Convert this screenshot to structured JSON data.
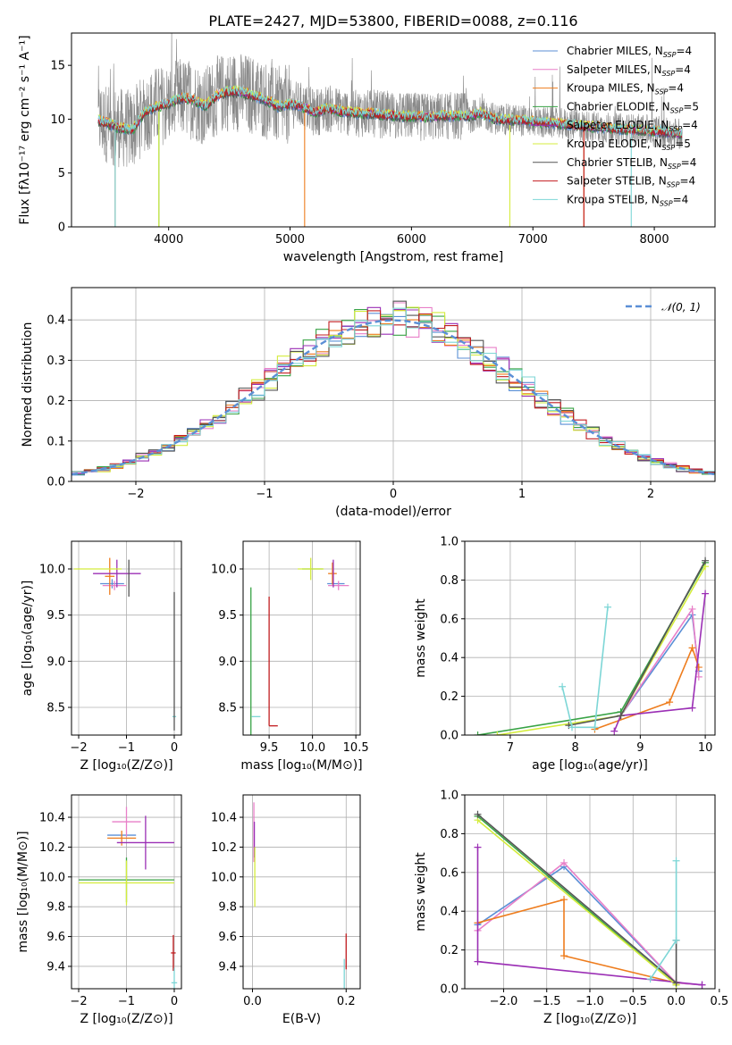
{
  "colors": [
    "#5b8fd6",
    "#e87fc8",
    "#ee7d1e",
    "#38a345",
    "#9b2fb5",
    "#d4ec3c",
    "#555555",
    "#c21d20",
    "#7dd6d6"
  ],
  "chart_data": [
    {
      "id": "spectrum",
      "type": "line",
      "title": "PLATE=2427, MJD=53800, FIBERID=0088, z=0.116",
      "xlabel": "wavelength [Angstrom, rest frame]",
      "ylabel": "Flux [fλ10⁻¹⁷ erg cm⁻² s⁻¹ A⁻¹]",
      "xlim": [
        3200,
        8500
      ],
      "ylim": [
        0,
        18
      ],
      "xticks": [
        "4000",
        "5000",
        "6000",
        "7000",
        "8000"
      ],
      "yticks": [
        "0",
        "5",
        "10",
        "15"
      ],
      "series": [
        {
          "name": "Chabrier MILES, N_SSP=4"
        },
        {
          "name": "Salpeter MILES, N_SSP=4"
        },
        {
          "name": "Kroupa MILES, N_SSP=4"
        },
        {
          "name": "Chabrier ELODIE, N_SSP=5"
        },
        {
          "name": "Salpeter ELODIE, N_SSP=4"
        },
        {
          "name": "Kroupa ELODIE, N_SSP=5"
        },
        {
          "name": "Chabrier STELIB, N_SSP=4"
        },
        {
          "name": "Salpeter STELIB, N_SSP=4"
        },
        {
          "name": "Kroupa STELIB, N_SSP=4"
        }
      ],
      "continuum": [
        [
          3420,
          9.9
        ],
        [
          3500,
          9.6
        ],
        [
          3600,
          9.2
        ],
        [
          3700,
          9.0
        ],
        [
          3800,
          10.6
        ],
        [
          3900,
          11.2
        ],
        [
          4000,
          11.4
        ],
        [
          4100,
          12.0
        ],
        [
          4200,
          11.8
        ],
        [
          4300,
          11.2
        ],
        [
          4400,
          12.2
        ],
        [
          4500,
          12.6
        ],
        [
          4600,
          12.5
        ],
        [
          4700,
          12.2
        ],
        [
          4800,
          11.8
        ],
        [
          4900,
          11.2
        ],
        [
          5000,
          11.4
        ],
        [
          5100,
          11.2
        ],
        [
          5200,
          10.6
        ],
        [
          5300,
          11.0
        ],
        [
          5400,
          10.8
        ],
        [
          5500,
          10.6
        ],
        [
          5700,
          10.5
        ],
        [
          5900,
          10.3
        ],
        [
          6100,
          10.2
        ],
        [
          6300,
          10.3
        ],
        [
          6500,
          10.3
        ],
        [
          6560,
          10.6
        ],
        [
          6700,
          10.0
        ],
        [
          6900,
          9.9
        ],
        [
          7100,
          9.7
        ],
        [
          7300,
          9.5
        ],
        [
          7500,
          9.3
        ],
        [
          7700,
          9.1
        ],
        [
          7900,
          9.0
        ],
        [
          8100,
          8.8
        ],
        [
          8230,
          8.6
        ]
      ]
    },
    {
      "id": "residuals",
      "type": "step",
      "xlabel": "(data-model)/error",
      "ylabel": "Normed distribution",
      "xlim": [
        -2.5,
        2.5
      ],
      "ylim": [
        0,
        0.48
      ],
      "xticks": [
        "−2",
        "−1",
        "0",
        "1",
        "2"
      ],
      "yticks": [
        "0.0",
        "0.1",
        "0.2",
        "0.3",
        "0.4"
      ],
      "legend": "𝒩(0, 1)",
      "legend_position": "top-right"
    },
    {
      "id": "z-age",
      "type": "errorbar",
      "xlabel": "Z [log₁₀(Z/Z⊙)]",
      "ylabel": "age  [log₁₀(age/yr)]",
      "xlim": [
        -2.15,
        0.15
      ],
      "ylim": [
        8.2,
        10.3
      ],
      "xticks": [
        "−2",
        "−1",
        "0"
      ],
      "yticks": [
        "8.5",
        "9.0",
        "9.5",
        "10.0"
      ],
      "points": [
        {
          "s": 0,
          "x": -1.3,
          "y": 9.84,
          "xe": 0.25,
          "ye": 0.05
        },
        {
          "s": 1,
          "x": -1.25,
          "y": 9.82,
          "xe": 0.25,
          "ye": 0.05
        },
        {
          "s": 2,
          "x": -1.35,
          "y": 9.92,
          "xe": 0.1,
          "ye": 0.2
        },
        {
          "s": 3,
          "x": -2.0,
          "y": 10.0,
          "xe": 0.0,
          "ye": 0.0
        },
        {
          "s": 4,
          "x": -1.2,
          "y": 9.95,
          "xe": 0.5,
          "ye": 0.15
        },
        {
          "s": 5,
          "x": -1.6,
          "y": 10.0,
          "xe": 0.5,
          "ye": 0.0
        },
        {
          "s": 6,
          "x": -0.95,
          "y": 9.9,
          "xe": 0.0,
          "ye": 0.2
        },
        {
          "s": 7,
          "x": 0.0,
          "y": 9.5,
          "xe": 0.0,
          "ye": 0.0
        },
        {
          "s": 8,
          "x": 0.0,
          "y": 8.4,
          "xe": 0.04,
          "ye": 0.0
        },
        {
          "s": 6,
          "x": 0.0,
          "y": 9.0,
          "xe": 0.0,
          "ye": 0.75
        }
      ]
    },
    {
      "id": "mass-age",
      "type": "errorbar",
      "xlabel": "mass [log₁₀(M/M⊙)]",
      "xlim": [
        9.2,
        10.55
      ],
      "ylim": [
        8.2,
        10.3
      ],
      "xticks": [
        "9.5",
        "10.0",
        "10.5"
      ],
      "yticks": [
        "8.5",
        "9.0",
        "9.5",
        "10.0"
      ],
      "points": [
        {
          "s": 0,
          "x": 10.27,
          "y": 9.84,
          "xe": 0.1,
          "ye": 0.0
        },
        {
          "s": 1,
          "x": 10.3,
          "y": 9.82,
          "xe": 0.12,
          "ye": 0.05
        },
        {
          "s": 2,
          "x": 10.23,
          "y": 9.95,
          "xe": 0.05,
          "ye": 0.12
        },
        {
          "s": 3,
          "x": 10.0,
          "y": 10.0,
          "xe": 0.12,
          "ye": 0.0
        },
        {
          "s": 4,
          "x": 10.24,
          "y": 9.95,
          "xe": 0.0,
          "ye": 0.15
        },
        {
          "s": 5,
          "x": 9.98,
          "y": 10.0,
          "xe": 0.15,
          "ye": 0.12
        },
        {
          "s": 3,
          "x": 9.29,
          "y": 9.0,
          "xe": 0.0,
          "ye": 0.8
        },
        {
          "s": 7,
          "x": 9.5,
          "y": 9.0,
          "xe": 0.0,
          "ye": 0.7
        },
        {
          "s": 7,
          "x": 9.55,
          "y": 8.3,
          "xe": 0.05,
          "ye": 0.0
        },
        {
          "s": 8,
          "x": 9.35,
          "y": 8.4,
          "xe": 0.05,
          "ye": 0.0
        }
      ]
    },
    {
      "id": "age-weight",
      "type": "line",
      "xlabel": "age  [log₁₀(age/yr)]",
      "ylabel": "mass weight",
      "xlim": [
        6.3,
        10.15
      ],
      "ylim": [
        0,
        1.0
      ],
      "xticks": [
        "7",
        "8",
        "9",
        "10"
      ],
      "yticks": [
        "0.0",
        "0.2",
        "0.4",
        "0.6",
        "0.8",
        "1.0"
      ],
      "series": [
        {
          "s": 0,
          "points": [
            [
              8.7,
              0.1
            ],
            [
              9.8,
              0.62
            ],
            [
              9.9,
              0.33
            ]
          ]
        },
        {
          "s": 1,
          "points": [
            [
              8.7,
              0.1
            ],
            [
              9.8,
              0.65
            ],
            [
              9.9,
              0.3
            ]
          ]
        },
        {
          "s": 2,
          "points": [
            [
              8.3,
              0.03
            ],
            [
              9.45,
              0.17
            ],
            [
              9.8,
              0.45
            ],
            [
              9.9,
              0.35
            ]
          ]
        },
        {
          "s": 3,
          "points": [
            [
              6.5,
              0.0
            ],
            [
              8.7,
              0.12
            ],
            [
              10.0,
              0.89
            ]
          ]
        },
        {
          "s": 4,
          "points": [
            [
              8.6,
              0.02
            ],
            [
              8.7,
              0.1
            ],
            [
              9.8,
              0.14
            ],
            [
              10.0,
              0.73
            ]
          ]
        },
        {
          "s": 5,
          "points": [
            [
              6.8,
              0.0
            ],
            [
              8.7,
              0.1
            ],
            [
              10.0,
              0.87
            ]
          ]
        },
        {
          "s": 6,
          "points": [
            [
              7.9,
              0.05
            ],
            [
              8.7,
              0.1
            ],
            [
              10.0,
              0.9
            ]
          ]
        },
        {
          "s": 8,
          "points": [
            [
              7.8,
              0.25
            ],
            [
              7.95,
              0.04
            ],
            [
              8.3,
              0.04
            ],
            [
              8.5,
              0.66
            ]
          ]
        }
      ]
    },
    {
      "id": "z-mass",
      "type": "errorbar",
      "xlabel": "Z [log₁₀(Z/Z⊙)]",
      "ylabel": "mass [log₁₀(M/M⊙)]",
      "xlim": [
        -2.15,
        0.15
      ],
      "ylim": [
        9.25,
        10.55
      ],
      "xticks": [
        "−2",
        "−1",
        "0"
      ],
      "yticks": [
        "9.4",
        "9.6",
        "9.8",
        "10.0",
        "10.2",
        "10.4"
      ],
      "points": [
        {
          "s": 0,
          "x": -1.1,
          "y": 10.28,
          "xe": 0.3,
          "ye": 0.0
        },
        {
          "s": 1,
          "x": -1.0,
          "y": 10.37,
          "xe": 0.3,
          "ye": 0.1
        },
        {
          "s": 2,
          "x": -1.1,
          "y": 10.26,
          "xe": 0.3,
          "ye": 0.05
        },
        {
          "s": 3,
          "x": -1.0,
          "y": 9.98,
          "xe": 1.0,
          "ye": 0.15
        },
        {
          "s": 4,
          "x": -0.6,
          "y": 10.23,
          "xe": 0.6,
          "ye": 0.18
        },
        {
          "s": 5,
          "x": -1.0,
          "y": 9.96,
          "xe": 1.0,
          "ye": 0.15
        },
        {
          "s": 7,
          "x": -0.02,
          "y": 9.49,
          "xe": 0.05,
          "ye": 0.12
        },
        {
          "s": 8,
          "x": 0.0,
          "y": 9.29,
          "xe": 0.06,
          "ye": 0.1
        }
      ]
    },
    {
      "id": "ebv-mass",
      "type": "errorbar",
      "xlabel": "E(B-V)",
      "xlim": [
        -0.02,
        0.23
      ],
      "ylim": [
        9.25,
        10.55
      ],
      "xticks": [
        "0.0",
        "0.2"
      ],
      "yticks": [
        "9.4",
        "9.6",
        "9.8",
        "10.0",
        "10.2",
        "10.4"
      ],
      "points": [
        {
          "s": 1,
          "x": 0.003,
          "y": 10.3,
          "xe": 0.0,
          "ye": 0.2
        },
        {
          "s": 4,
          "x": 0.004,
          "y": 10.25,
          "xe": 0.0,
          "ye": 0.12
        },
        {
          "s": 5,
          "x": 0.005,
          "y": 10.0,
          "xe": 0.0,
          "ye": 0.2
        },
        {
          "s": 7,
          "x": 0.2,
          "y": 9.5,
          "xe": 0.0,
          "ye": 0.12
        },
        {
          "s": 8,
          "x": 0.196,
          "y": 9.35,
          "xe": 0.0,
          "ye": 0.1
        }
      ]
    },
    {
      "id": "z-weight",
      "type": "line",
      "xlabel": "Z [log₁₀(Z/Z⊙)]",
      "ylabel": "mass weight",
      "xlim": [
        -2.45,
        0.45
      ],
      "ylim": [
        0,
        1.0
      ],
      "xticks": [
        "−2.0",
        "−1.5",
        "−1.0",
        "−0.5",
        "0.0",
        "0.5"
      ],
      "yticks": [
        "0.0",
        "0.2",
        "0.4",
        "0.6",
        "0.8",
        "1.0"
      ],
      "series": [
        {
          "s": 0,
          "points": [
            [
              -2.3,
              0.33
            ],
            [
              -1.3,
              0.63
            ],
            [
              0.0,
              0.03
            ],
            [
              0.3,
              0.02
            ]
          ]
        },
        {
          "s": 1,
          "points": [
            [
              -2.3,
              0.3
            ],
            [
              -1.3,
              0.65
            ],
            [
              0.0,
              0.03
            ],
            [
              0.3,
              0.02
            ]
          ]
        },
        {
          "s": 2,
          "points": [
            [
              -2.3,
              0.34
            ],
            [
              -1.3,
              0.46
            ],
            [
              -1.3,
              0.17
            ],
            [
              0.0,
              0.03
            ]
          ]
        },
        {
          "s": 3,
          "points": [
            [
              -2.3,
              0.89
            ],
            [
              0.0,
              0.02
            ]
          ]
        },
        {
          "s": 4,
          "points": [
            [
              -2.3,
              0.73
            ],
            [
              -2.3,
              0.14
            ],
            [
              0.3,
              0.02
            ]
          ]
        },
        {
          "s": 5,
          "points": [
            [
              -2.3,
              0.87
            ],
            [
              0.0,
              0.02
            ]
          ]
        },
        {
          "s": 6,
          "points": [
            [
              -2.3,
              0.9
            ],
            [
              0.0,
              0.03
            ],
            [
              0.0,
              0.25
            ]
          ]
        },
        {
          "s": 8,
          "points": [
            [
              -0.3,
              0.05
            ],
            [
              0.0,
              0.25
            ],
            [
              0.0,
              0.66
            ]
          ]
        }
      ]
    }
  ]
}
